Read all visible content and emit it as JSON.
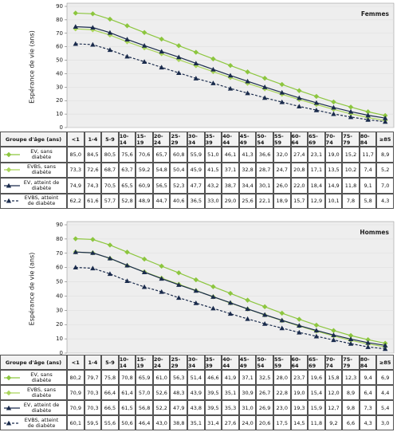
{
  "chart_data": [
    {
      "type": "line",
      "title": "Femmes",
      "y_label": "Espérance de vie (ans)",
      "table_header": "Groupe d'âge (ans)",
      "categories": [
        "<1",
        "1-4",
        "5-9",
        "10-14",
        "15-19",
        "20-24",
        "25-29",
        "30-34",
        "35-39",
        "40-44",
        "45-49",
        "50-54",
        "55-59",
        "60-64",
        "65-69",
        "70-74",
        "75-79",
        "80-84",
        "≥85"
      ],
      "ylim": [
        0,
        90
      ],
      "yticks": [
        0,
        10,
        20,
        30,
        40,
        50,
        60,
        70,
        80,
        90
      ],
      "grid": true,
      "series": [
        {
          "name": "EV, sans diabète",
          "color": "#8cc63e",
          "marker": "diamond",
          "dashed": false,
          "values": [
            85.0,
            84.5,
            80.5,
            75.6,
            70.6,
            65.7,
            60.8,
            55.9,
            51.0,
            46.1,
            41.3,
            36.6,
            32.0,
            27.4,
            23.1,
            19.0,
            15.2,
            11.7,
            8.9
          ],
          "value_labels": [
            "85,0",
            "84,5",
            "80,5",
            "75,6",
            "70,6",
            "65,7",
            "60,8",
            "55,9",
            "51,0",
            "46,1",
            "41,3",
            "36,6",
            "32,0",
            "27,4",
            "23,1",
            "19,0",
            "15,2",
            "11,7",
            "8,9"
          ]
        },
        {
          "name": "EVBS, sans diabète",
          "color": "#a9d45a",
          "marker": "diamond",
          "dashed": false,
          "values": [
            73.3,
            72.6,
            68.7,
            63.7,
            59.2,
            54.8,
            50.4,
            45.9,
            41.5,
            37.1,
            32.8,
            28.7,
            24.7,
            20.8,
            17.1,
            13.5,
            10.2,
            7.4,
            5.2
          ],
          "value_labels": [
            "73,3",
            "72,6",
            "68,7",
            "63,7",
            "59,2",
            "54,8",
            "50,4",
            "45,9",
            "41,5",
            "37,1",
            "32,8",
            "28,7",
            "24,7",
            "20,8",
            "17,1",
            "13,5",
            "10,2",
            "7,4",
            "5,2"
          ]
        },
        {
          "name": "EV, atteint de diabète",
          "color": "#1a2b4c",
          "marker": "triangle",
          "dashed": false,
          "values": [
            74.9,
            74.3,
            70.5,
            65.5,
            60.9,
            56.5,
            52.3,
            47.7,
            43.2,
            38.7,
            34.4,
            30.1,
            26.0,
            22.0,
            18.4,
            14.9,
            11.8,
            9.1,
            7.0
          ],
          "value_labels": [
            "74,9",
            "74,3",
            "70,5",
            "65,5",
            "60,9",
            "56,5",
            "52,3",
            "47,7",
            "43,2",
            "38,7",
            "34,4",
            "30,1",
            "26,0",
            "22,0",
            "18,4",
            "14,9",
            "11,8",
            "9,1",
            "7,0"
          ]
        },
        {
          "name": "EVBS, atteint de diabète",
          "color": "#1a2b4c",
          "marker": "triangle",
          "dashed": true,
          "values": [
            62.2,
            61.6,
            57.7,
            52.8,
            48.9,
            44.7,
            40.6,
            36.5,
            33.0,
            29.0,
            25.6,
            22.1,
            18.9,
            15.7,
            12.9,
            10.1,
            7.8,
            5.8,
            4.3
          ],
          "value_labels": [
            "62,2",
            "61,6",
            "57,7",
            "52,8",
            "48,9",
            "44,7",
            "40,6",
            "36,5",
            "33,0",
            "29,0",
            "25,6",
            "22,1",
            "18,9",
            "15,7",
            "12,9",
            "10,1",
            "7,8",
            "5,8",
            "4,3"
          ]
        }
      ]
    },
    {
      "type": "line",
      "title": "Hommes",
      "y_label": "Espérance de vie (ans)",
      "table_header": "Groupe d'âge (ans)",
      "categories": [
        "<1",
        "1-4",
        "5-9",
        "10-14",
        "15-19",
        "20-24",
        "25-29",
        "30-34",
        "35-39",
        "40-44",
        "45-49",
        "50-54",
        "55-59",
        "60-64",
        "65-69",
        "70-74",
        "75-79",
        "80-84",
        "≥85"
      ],
      "ylim": [
        0,
        90
      ],
      "yticks": [
        0,
        10,
        20,
        30,
        40,
        50,
        60,
        70,
        80,
        90
      ],
      "grid": true,
      "series": [
        {
          "name": "EV, sans diabète",
          "color": "#8cc63e",
          "marker": "diamond",
          "dashed": false,
          "values": [
            80.2,
            79.7,
            75.8,
            70.8,
            65.9,
            61.0,
            56.3,
            51.4,
            46.6,
            41.9,
            37.1,
            32.5,
            28.0,
            23.7,
            19.6,
            15.8,
            12.3,
            9.4,
            6.9
          ],
          "value_labels": [
            "80,2",
            "79,7",
            "75,8",
            "70,8",
            "65,9",
            "61,0",
            "56,3",
            "51,4",
            "46,6",
            "41,9",
            "37,1",
            "32,5",
            "28,0",
            "23,7",
            "19,6",
            "15,8",
            "12,3",
            "9,4",
            "6,9"
          ]
        },
        {
          "name": "EVBS, sans diabète",
          "color": "#a9d45a",
          "marker": "diamond",
          "dashed": false,
          "values": [
            70.9,
            70.3,
            66.4,
            61.4,
            57.0,
            52.6,
            48.3,
            43.9,
            39.5,
            35.1,
            30.9,
            26.7,
            22.8,
            19.0,
            15.4,
            12.0,
            8.9,
            6.4,
            4.4
          ],
          "value_labels": [
            "70,9",
            "70,3",
            "66,4",
            "61,4",
            "57,0",
            "52,6",
            "48,3",
            "43,9",
            "39,5",
            "35,1",
            "30,9",
            "26,7",
            "22,8",
            "19,0",
            "15,4",
            "12,0",
            "8,9",
            "6,4",
            "4,4"
          ]
        },
        {
          "name": "EV, atteint de diabète",
          "color": "#1a2b4c",
          "marker": "triangle",
          "dashed": false,
          "values": [
            70.9,
            70.3,
            66.5,
            61.5,
            56.8,
            52.2,
            47.9,
            43.8,
            39.5,
            35.3,
            31.0,
            26.9,
            23.0,
            19.3,
            15.9,
            12.7,
            9.8,
            7.3,
            5.4
          ],
          "value_labels": [
            "70,9",
            "70,3",
            "66,5",
            "61,5",
            "56,8",
            "52,2",
            "47,9",
            "43,8",
            "39,5",
            "35,3",
            "31,0",
            "26,9",
            "23,0",
            "19,3",
            "15,9",
            "12,7",
            "9,8",
            "7,3",
            "5,4"
          ]
        },
        {
          "name": "EVBS, atteint de diabète",
          "color": "#1a2b4c",
          "marker": "triangle",
          "dashed": true,
          "values": [
            60.1,
            59.5,
            55.6,
            50.6,
            46.4,
            43.0,
            38.8,
            35.1,
            31.4,
            27.6,
            24.0,
            20.6,
            17.5,
            14.5,
            11.8,
            9.2,
            6.6,
            4.3,
            3.0
          ],
          "value_labels": [
            "60,1",
            "59,5",
            "55,6",
            "50,6",
            "46,4",
            "43,0",
            "38,8",
            "35,1",
            "31,4",
            "27,6",
            "24,0",
            "20,6",
            "17,5",
            "14,5",
            "11,8",
            "9,2",
            "6,6",
            "4,3",
            "3,0"
          ]
        }
      ]
    }
  ]
}
